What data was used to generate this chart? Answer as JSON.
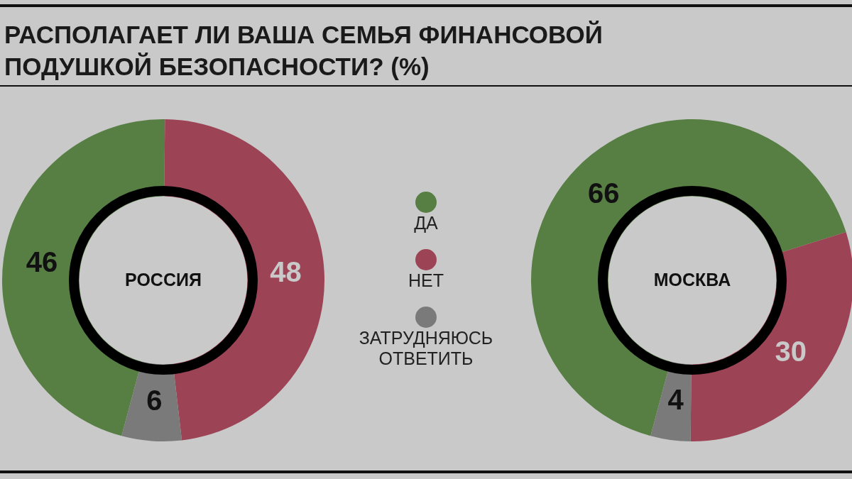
{
  "chart_data": [
    {
      "type": "other",
      "title": "РАСПОЛАГАЕТ ЛИ ВАША СЕМЬЯ ФИНАНСОВОЙ ПОДУШКОЙ БЕЗОПАСНОСТИ? (%)"
    },
    {
      "type": "donut",
      "title": "РОССИЯ",
      "categories": [
        "ДА",
        "НЕТ",
        "ЗАТРУДНЯЮСЬ ОТВЕТИТЬ"
      ],
      "values": [
        46,
        48,
        6
      ],
      "colors": [
        "#577e43",
        "#9c4455",
        "#7a7a7a"
      ],
      "data_labels": true,
      "legend": "right"
    },
    {
      "type": "donut",
      "title": "МОСКВА",
      "categories": [
        null,
        null,
        null
      ],
      "values": [
        66,
        30,
        4
      ],
      "colors": [
        "#577e43",
        "#9c4455",
        "#7a7a7a"
      ],
      "data_labels": true
    }
  ]
}
